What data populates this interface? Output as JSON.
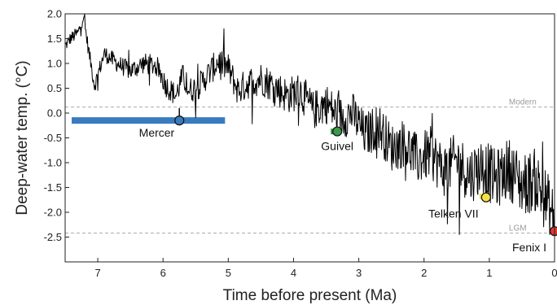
{
  "chart_data": {
    "type": "line",
    "xlabel": "Time before present (Ma)",
    "ylabel": "Deep-water temp. (°C)",
    "xlim": [
      7.5,
      0
    ],
    "ylim": [
      -3.0,
      2.0
    ],
    "x_ticks": [
      7,
      6,
      5,
      4,
      3,
      2,
      1,
      0
    ],
    "y_ticks": [
      2.0,
      1.5,
      1.0,
      0.5,
      0.0,
      -0.5,
      -1.0,
      -1.5,
      -2.0,
      -2.5
    ],
    "x_tick_labels": [
      "7",
      "6",
      "5",
      "4",
      "3",
      "2",
      "1",
      "0"
    ],
    "y_tick_labels": [
      "2.0",
      "1.5",
      "1.0",
      "0.5",
      "0.0",
      "-0.5",
      "-1.0",
      "-1.5",
      "-2.0",
      "-2.5"
    ],
    "grid": false,
    "series": [
      {
        "color": "#000000",
        "anchors": [
          [
            7.5,
            1.35
          ],
          [
            7.42,
            1.5
          ],
          [
            7.3,
            1.62
          ],
          [
            7.22,
            1.95
          ],
          [
            7.15,
            1.35
          ],
          [
            7.05,
            0.55
          ],
          [
            6.9,
            1.2
          ],
          [
            6.7,
            1.0
          ],
          [
            6.5,
            0.85
          ],
          [
            6.3,
            1.0
          ],
          [
            6.1,
            0.95
          ],
          [
            5.95,
            0.55
          ],
          [
            5.8,
            0.35
          ],
          [
            5.7,
            0.75
          ],
          [
            5.6,
            0.45
          ],
          [
            5.45,
            0.55
          ],
          [
            5.3,
            0.8
          ],
          [
            5.15,
            1.05
          ],
          [
            5.0,
            0.9
          ],
          [
            4.85,
            0.45
          ],
          [
            4.7,
            0.6
          ],
          [
            4.5,
            0.7
          ],
          [
            4.3,
            0.55
          ],
          [
            4.1,
            0.35
          ],
          [
            3.9,
            0.45
          ],
          [
            3.7,
            0.05
          ],
          [
            3.5,
            0.2
          ],
          [
            3.3,
            -0.1
          ],
          [
            3.1,
            0.0
          ],
          [
            2.9,
            -0.45
          ],
          [
            2.7,
            -0.25
          ],
          [
            2.5,
            -0.7
          ],
          [
            2.3,
            -0.6
          ],
          [
            2.1,
            -0.95
          ],
          [
            1.9,
            -0.8
          ],
          [
            1.7,
            -1.15
          ],
          [
            1.5,
            -0.95
          ],
          [
            1.3,
            -1.25
          ],
          [
            1.1,
            -1.05
          ],
          [
            0.9,
            -1.35
          ],
          [
            0.7,
            -1.1
          ],
          [
            0.5,
            -1.45
          ],
          [
            0.3,
            -1.35
          ],
          [
            0.15,
            -1.7
          ],
          [
            0.0,
            -2.2
          ]
        ]
      }
    ],
    "reference_lines": [
      {
        "label": "Modern",
        "y": 0.12,
        "color": "#aaaaaa"
      },
      {
        "label": "LGM",
        "y": -2.42,
        "color": "#aaaaaa"
      }
    ],
    "bar_annotation": {
      "x_start": 7.4,
      "x_end": 5.05,
      "y": -0.15,
      "color": "#3a7bbf"
    },
    "sites": [
      {
        "label": "Mercer",
        "x": 5.75,
        "y": -0.15,
        "color": "#3a7bbf",
        "stem_from": 0.1
      },
      {
        "label": "Guivel",
        "x": 3.33,
        "y": -0.37,
        "color": "#3a9a4a"
      },
      {
        "label": "Telken VII",
        "x": 1.05,
        "y": -1.7,
        "color": "#f2e24a"
      },
      {
        "label": "Fenix I",
        "x": 0.0,
        "y": -2.38,
        "color": "#e03a2e"
      }
    ],
    "site_ticks": [
      {
        "x": 3.38,
        "y": -0.38,
        "color": "#3a9a4a"
      },
      {
        "x": 1.1,
        "y": -1.69,
        "color": "#f2e24a"
      }
    ]
  }
}
